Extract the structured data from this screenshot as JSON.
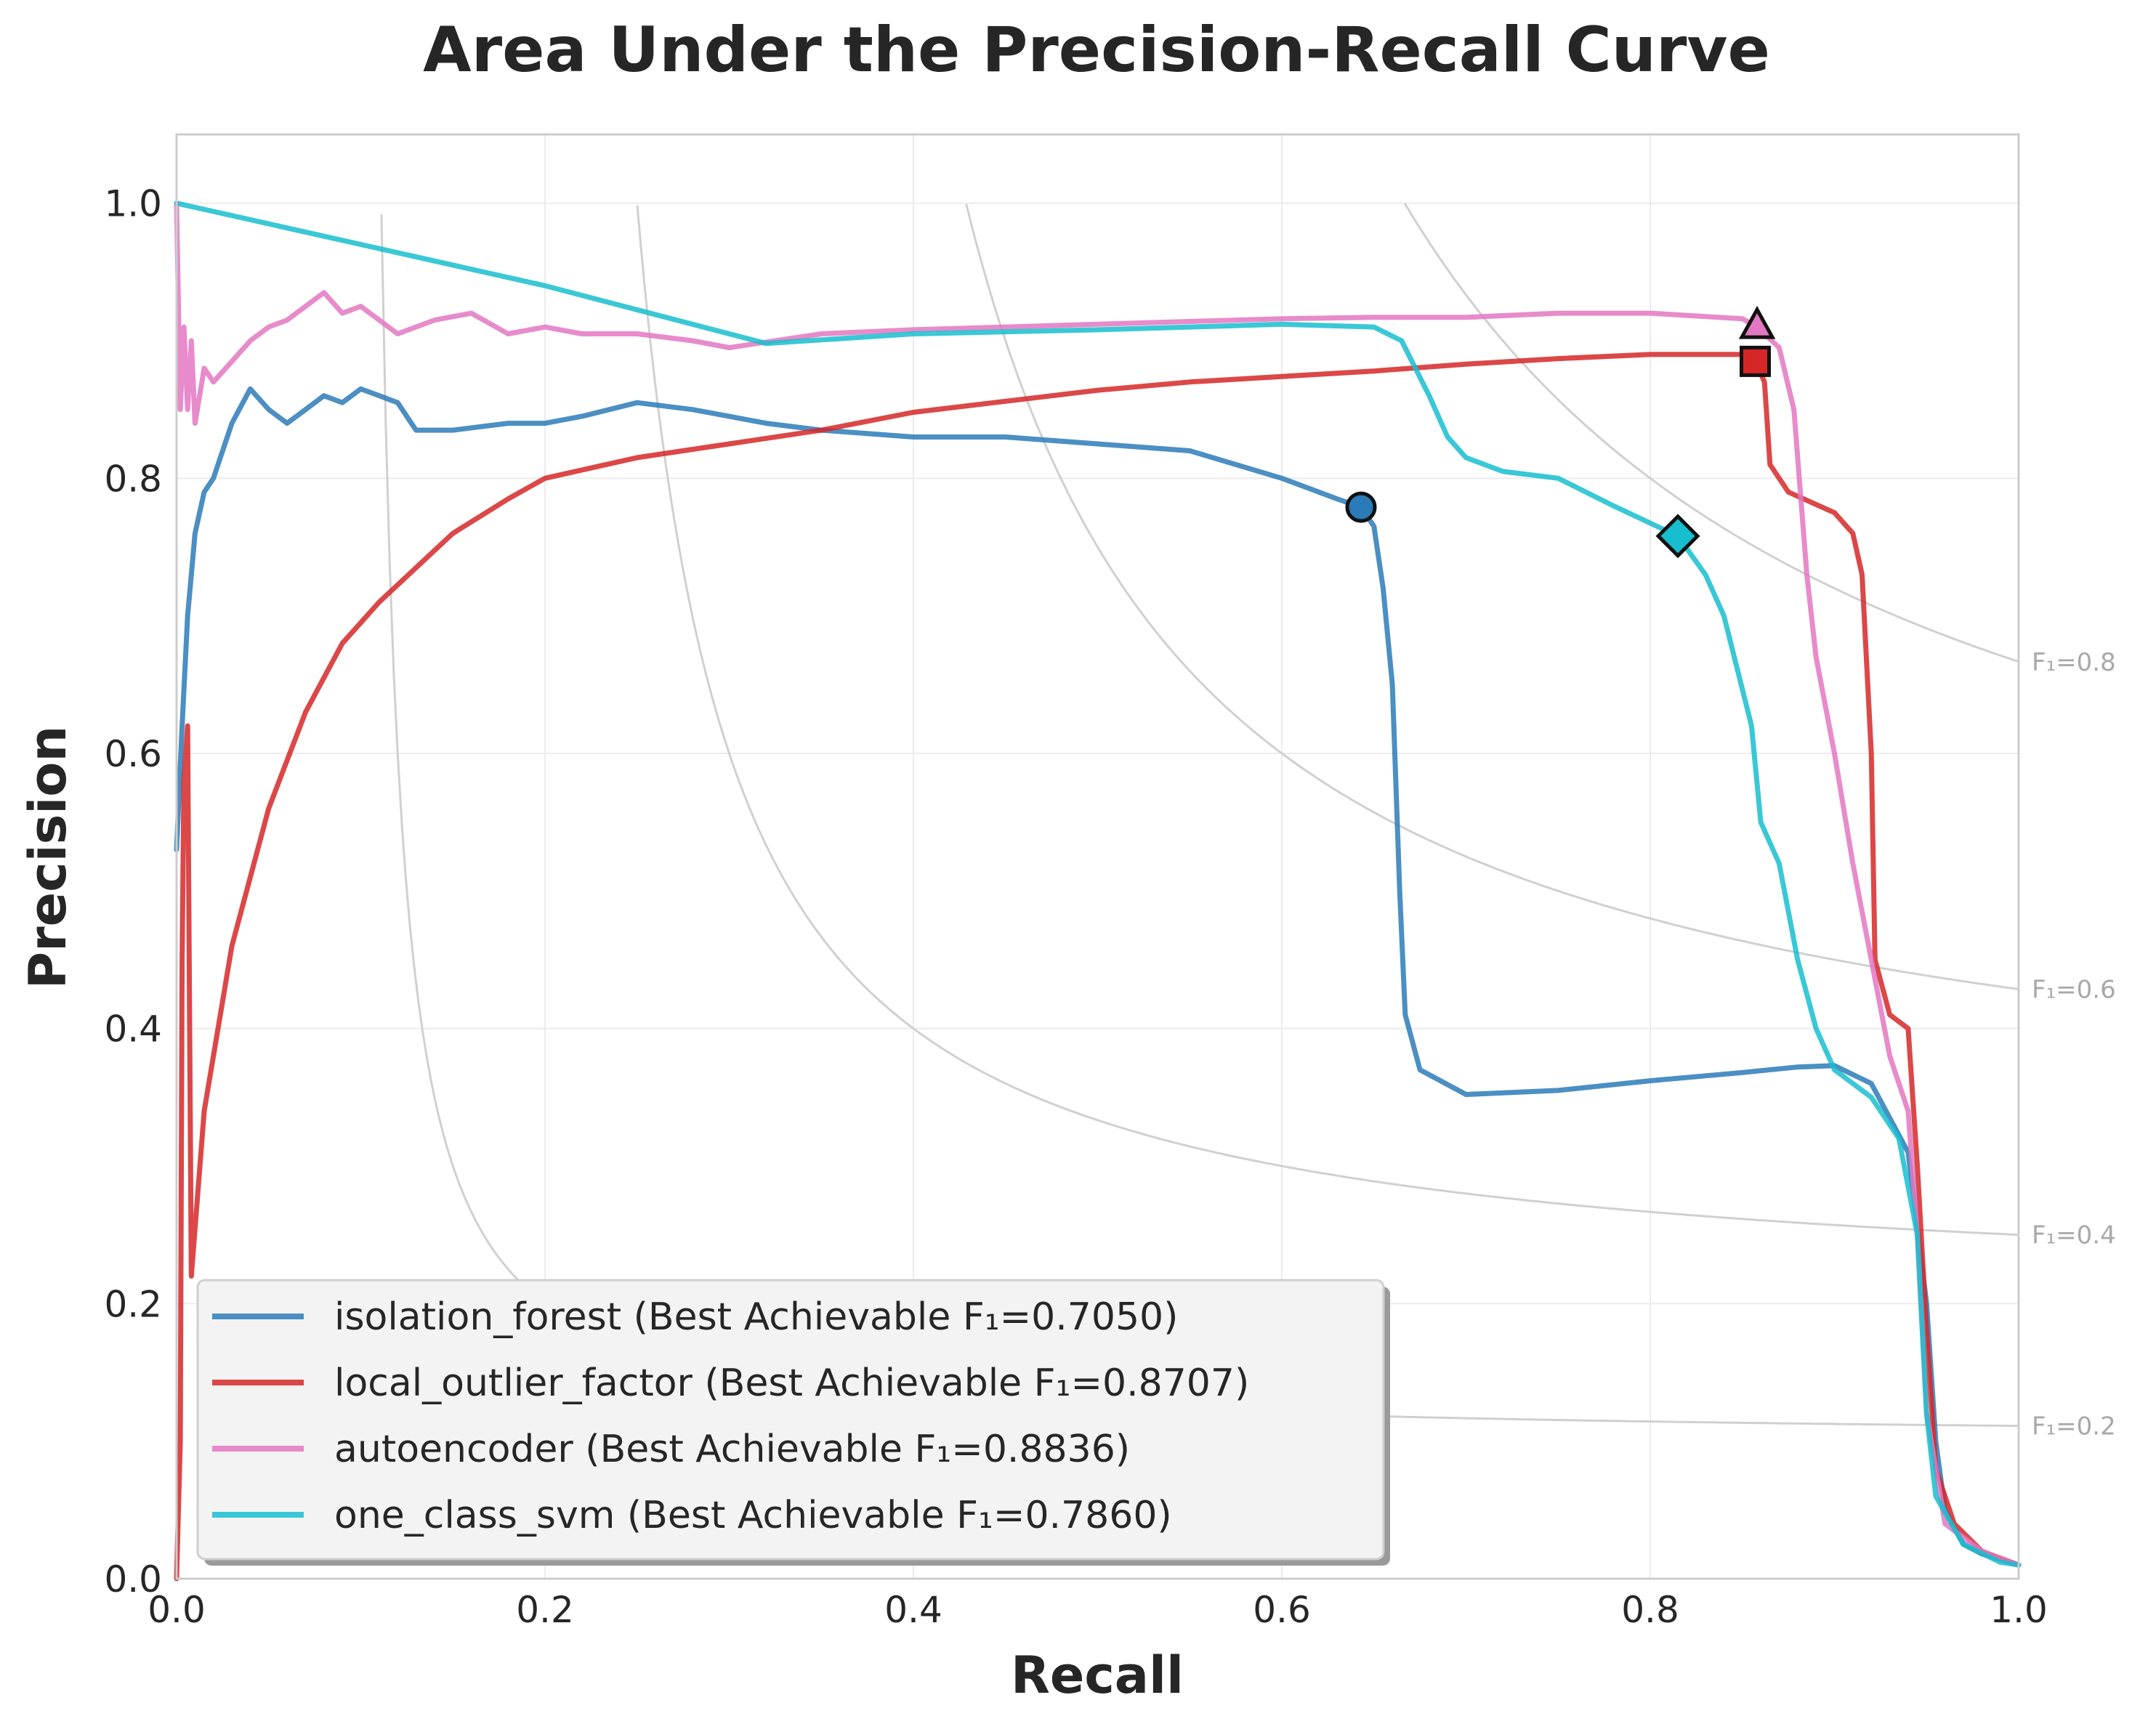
{
  "chart_data": {
    "type": "line",
    "title": "Area Under the Precision-Recall Curve",
    "xlabel": "Recall",
    "ylabel": "Precision",
    "xlim": [
      0.0,
      1.0
    ],
    "ylim": [
      0.0,
      1.05
    ],
    "xticks": [
      "0.0",
      "0.2",
      "0.4",
      "0.6",
      "0.8",
      "1.0"
    ],
    "yticks": [
      "0.0",
      "0.2",
      "0.4",
      "0.6",
      "0.8",
      "1.0"
    ],
    "grid": true,
    "legend_position": "lower-left",
    "iso_f1": [
      {
        "f1": 0.2,
        "label": "F₁=0.2"
      },
      {
        "f1": 0.4,
        "label": "F₁=0.4"
      },
      {
        "f1": 0.6,
        "label": "F₁=0.6"
      },
      {
        "f1": 0.8,
        "label": "F₁=0.8"
      }
    ],
    "series": [
      {
        "name": "isolation_forest",
        "legend": "isolation_forest (Best Achievable F₁=0.7050)",
        "best_f1": 0.705,
        "color": "#2b7bb9",
        "marker": "circle",
        "best_point": [
          0.643,
          0.779
        ],
        "points": [
          [
            0.0,
            0.53
          ],
          [
            0.003,
            0.62
          ],
          [
            0.006,
            0.7
          ],
          [
            0.01,
            0.76
          ],
          [
            0.015,
            0.79
          ],
          [
            0.02,
            0.8
          ],
          [
            0.03,
            0.84
          ],
          [
            0.04,
            0.865
          ],
          [
            0.05,
            0.85
          ],
          [
            0.06,
            0.84
          ],
          [
            0.07,
            0.85
          ],
          [
            0.08,
            0.86
          ],
          [
            0.09,
            0.855
          ],
          [
            0.1,
            0.865
          ],
          [
            0.11,
            0.86
          ],
          [
            0.12,
            0.855
          ],
          [
            0.13,
            0.835
          ],
          [
            0.15,
            0.835
          ],
          [
            0.18,
            0.84
          ],
          [
            0.2,
            0.84
          ],
          [
            0.22,
            0.845
          ],
          [
            0.25,
            0.855
          ],
          [
            0.28,
            0.85
          ],
          [
            0.3,
            0.845
          ],
          [
            0.32,
            0.84
          ],
          [
            0.35,
            0.835
          ],
          [
            0.4,
            0.83
          ],
          [
            0.45,
            0.83
          ],
          [
            0.5,
            0.825
          ],
          [
            0.55,
            0.82
          ],
          [
            0.6,
            0.8
          ],
          [
            0.63,
            0.785
          ],
          [
            0.643,
            0.779
          ],
          [
            0.65,
            0.765
          ],
          [
            0.655,
            0.72
          ],
          [
            0.66,
            0.65
          ],
          [
            0.664,
            0.5
          ],
          [
            0.667,
            0.41
          ],
          [
            0.675,
            0.37
          ],
          [
            0.7,
            0.352
          ],
          [
            0.75,
            0.355
          ],
          [
            0.8,
            0.362
          ],
          [
            0.85,
            0.368
          ],
          [
            0.88,
            0.372
          ],
          [
            0.9,
            0.373
          ],
          [
            0.92,
            0.36
          ],
          [
            0.94,
            0.31
          ],
          [
            0.95,
            0.2
          ],
          [
            0.955,
            0.1
          ],
          [
            0.96,
            0.05
          ],
          [
            0.97,
            0.025
          ],
          [
            0.98,
            0.018
          ],
          [
            1.0,
            0.01
          ]
        ]
      },
      {
        "name": "local_outlier_factor",
        "legend": "local_outlier_factor (Best Achievable F₁=0.8707)",
        "best_f1": 0.8707,
        "color": "#d62728",
        "marker": "square",
        "best_point": [
          0.857,
          0.885
        ],
        "points": [
          [
            0.0,
            0.0
          ],
          [
            0.002,
            0.1
          ],
          [
            0.003,
            0.45
          ],
          [
            0.004,
            0.58
          ],
          [
            0.006,
            0.62
          ],
          [
            0.008,
            0.22
          ],
          [
            0.015,
            0.34
          ],
          [
            0.03,
            0.46
          ],
          [
            0.05,
            0.56
          ],
          [
            0.07,
            0.63
          ],
          [
            0.09,
            0.68
          ],
          [
            0.11,
            0.71
          ],
          [
            0.13,
            0.735
          ],
          [
            0.15,
            0.76
          ],
          [
            0.18,
            0.785
          ],
          [
            0.2,
            0.8
          ],
          [
            0.25,
            0.815
          ],
          [
            0.3,
            0.825
          ],
          [
            0.35,
            0.835
          ],
          [
            0.4,
            0.848
          ],
          [
            0.45,
            0.856
          ],
          [
            0.5,
            0.864
          ],
          [
            0.55,
            0.87
          ],
          [
            0.6,
            0.874
          ],
          [
            0.65,
            0.878
          ],
          [
            0.7,
            0.883
          ],
          [
            0.75,
            0.887
          ],
          [
            0.8,
            0.89
          ],
          [
            0.85,
            0.89
          ],
          [
            0.857,
            0.885
          ],
          [
            0.862,
            0.87
          ],
          [
            0.865,
            0.81
          ],
          [
            0.875,
            0.79
          ],
          [
            0.9,
            0.775
          ],
          [
            0.91,
            0.76
          ],
          [
            0.915,
            0.73
          ],
          [
            0.92,
            0.6
          ],
          [
            0.922,
            0.45
          ],
          [
            0.93,
            0.41
          ],
          [
            0.94,
            0.4
          ],
          [
            0.945,
            0.3
          ],
          [
            0.95,
            0.18
          ],
          [
            0.955,
            0.08
          ],
          [
            0.965,
            0.04
          ],
          [
            0.98,
            0.02
          ],
          [
            1.0,
            0.01
          ]
        ]
      },
      {
        "name": "autoencoder",
        "legend": "autoencoder (Best Achievable F₁=0.8836)",
        "best_f1": 0.8836,
        "color": "#e377c2",
        "marker": "triangle",
        "best_point": [
          0.858,
          0.91
        ],
        "points": [
          [
            0.0,
            1.0
          ],
          [
            0.002,
            0.85
          ],
          [
            0.004,
            0.91
          ],
          [
            0.006,
            0.85
          ],
          [
            0.008,
            0.9
          ],
          [
            0.01,
            0.84
          ],
          [
            0.015,
            0.88
          ],
          [
            0.02,
            0.87
          ],
          [
            0.03,
            0.885
          ],
          [
            0.04,
            0.9
          ],
          [
            0.05,
            0.91
          ],
          [
            0.06,
            0.915
          ],
          [
            0.07,
            0.925
          ],
          [
            0.08,
            0.935
          ],
          [
            0.09,
            0.92
          ],
          [
            0.1,
            0.925
          ],
          [
            0.11,
            0.915
          ],
          [
            0.12,
            0.905
          ],
          [
            0.14,
            0.915
          ],
          [
            0.16,
            0.92
          ],
          [
            0.18,
            0.905
          ],
          [
            0.2,
            0.91
          ],
          [
            0.22,
            0.905
          ],
          [
            0.25,
            0.905
          ],
          [
            0.28,
            0.9
          ],
          [
            0.3,
            0.895
          ],
          [
            0.35,
            0.905
          ],
          [
            0.4,
            0.908
          ],
          [
            0.45,
            0.91
          ],
          [
            0.5,
            0.912
          ],
          [
            0.55,
            0.914
          ],
          [
            0.6,
            0.916
          ],
          [
            0.65,
            0.917
          ],
          [
            0.7,
            0.917
          ],
          [
            0.75,
            0.92
          ],
          [
            0.8,
            0.92
          ],
          [
            0.85,
            0.916
          ],
          [
            0.858,
            0.91
          ],
          [
            0.87,
            0.895
          ],
          [
            0.878,
            0.85
          ],
          [
            0.885,
            0.73
          ],
          [
            0.89,
            0.67
          ],
          [
            0.9,
            0.6
          ],
          [
            0.91,
            0.52
          ],
          [
            0.92,
            0.45
          ],
          [
            0.93,
            0.38
          ],
          [
            0.94,
            0.34
          ],
          [
            0.945,
            0.25
          ],
          [
            0.95,
            0.12
          ],
          [
            0.96,
            0.04
          ],
          [
            0.98,
            0.02
          ],
          [
            1.0,
            0.01
          ]
        ]
      },
      {
        "name": "one_class_svm",
        "legend": "one_class_svm (Best Achievable F₁=0.7860)",
        "best_f1": 0.786,
        "color": "#17becf",
        "marker": "diamond",
        "best_point": [
          0.815,
          0.758
        ],
        "points": [
          [
            0.0,
            1.0
          ],
          [
            0.1,
            0.97
          ],
          [
            0.2,
            0.94
          ],
          [
            0.3,
            0.905
          ],
          [
            0.32,
            0.898
          ],
          [
            0.4,
            0.905
          ],
          [
            0.5,
            0.908
          ],
          [
            0.55,
            0.91
          ],
          [
            0.6,
            0.912
          ],
          [
            0.65,
            0.91
          ],
          [
            0.665,
            0.9
          ],
          [
            0.68,
            0.86
          ],
          [
            0.69,
            0.83
          ],
          [
            0.7,
            0.815
          ],
          [
            0.72,
            0.805
          ],
          [
            0.75,
            0.8
          ],
          [
            0.78,
            0.78
          ],
          [
            0.815,
            0.758
          ],
          [
            0.83,
            0.73
          ],
          [
            0.84,
            0.7
          ],
          [
            0.855,
            0.62
          ],
          [
            0.86,
            0.55
          ],
          [
            0.87,
            0.52
          ],
          [
            0.88,
            0.45
          ],
          [
            0.89,
            0.4
          ],
          [
            0.9,
            0.37
          ],
          [
            0.92,
            0.35
          ],
          [
            0.935,
            0.32
          ],
          [
            0.945,
            0.25
          ],
          [
            0.95,
            0.12
          ],
          [
            0.955,
            0.06
          ],
          [
            0.97,
            0.025
          ],
          [
            0.99,
            0.012
          ],
          [
            1.0,
            0.01
          ]
        ]
      }
    ]
  }
}
